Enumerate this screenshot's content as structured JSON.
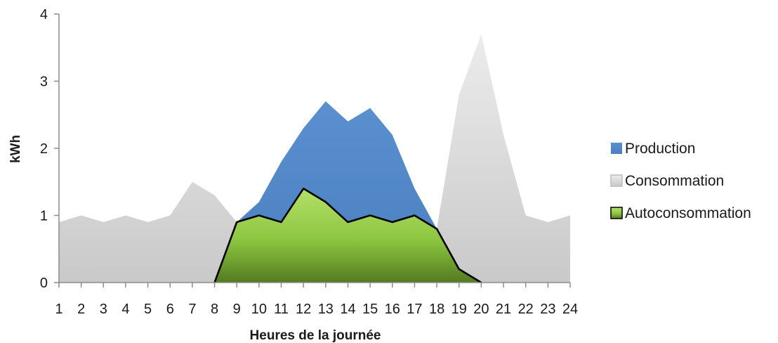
{
  "chart_data": {
    "type": "area",
    "title": "",
    "xlabel": "Heures de la journée",
    "ylabel": "kWh",
    "ylim": [
      0,
      4
    ],
    "yticks": [
      0,
      1,
      2,
      3,
      4
    ],
    "x": [
      1,
      2,
      3,
      4,
      5,
      6,
      7,
      8,
      9,
      10,
      11,
      12,
      13,
      14,
      15,
      16,
      17,
      18,
      19,
      20,
      21,
      22,
      23,
      24
    ],
    "x_tick_labels": [
      "1",
      "2",
      "3",
      "4",
      "5",
      "6",
      "7",
      "8",
      "9",
      "10",
      "11",
      "12",
      "13",
      "14",
      "15",
      "16",
      "17",
      "18",
      "19",
      "20",
      "21",
      "22",
      "23",
      "24"
    ],
    "y_tick_labels": [
      "0",
      "1",
      "2",
      "3",
      "4"
    ],
    "legend_position": "right",
    "grid": false,
    "series": [
      {
        "name": "Production",
        "color": "#4f86c6",
        "values": [
          0,
          0,
          0,
          0,
          0,
          0,
          0,
          0,
          0.9,
          1.2,
          1.8,
          2.3,
          2.7,
          2.4,
          2.6,
          2.2,
          1.4,
          0.8,
          0.2,
          0,
          0,
          0,
          0,
          0
        ]
      },
      {
        "name": "Consommation",
        "color": "#d9d9d9",
        "values": [
          0.9,
          1.0,
          0.9,
          1.0,
          0.9,
          1.0,
          1.5,
          1.3,
          0.9,
          1.0,
          0.9,
          1.4,
          1.2,
          0.9,
          1.0,
          0.9,
          1.0,
          0.8,
          2.8,
          3.7,
          2.2,
          1.0,
          0.9,
          1.0
        ]
      },
      {
        "name": "Autoconsommation",
        "color": "#8cc63f",
        "values": [
          0,
          0,
          0,
          0,
          0,
          0,
          0,
          0,
          0.9,
          1.0,
          0.9,
          1.4,
          1.2,
          0.9,
          1.0,
          0.9,
          1.0,
          0.8,
          0.2,
          0,
          0,
          0,
          0,
          0
        ]
      }
    ]
  }
}
